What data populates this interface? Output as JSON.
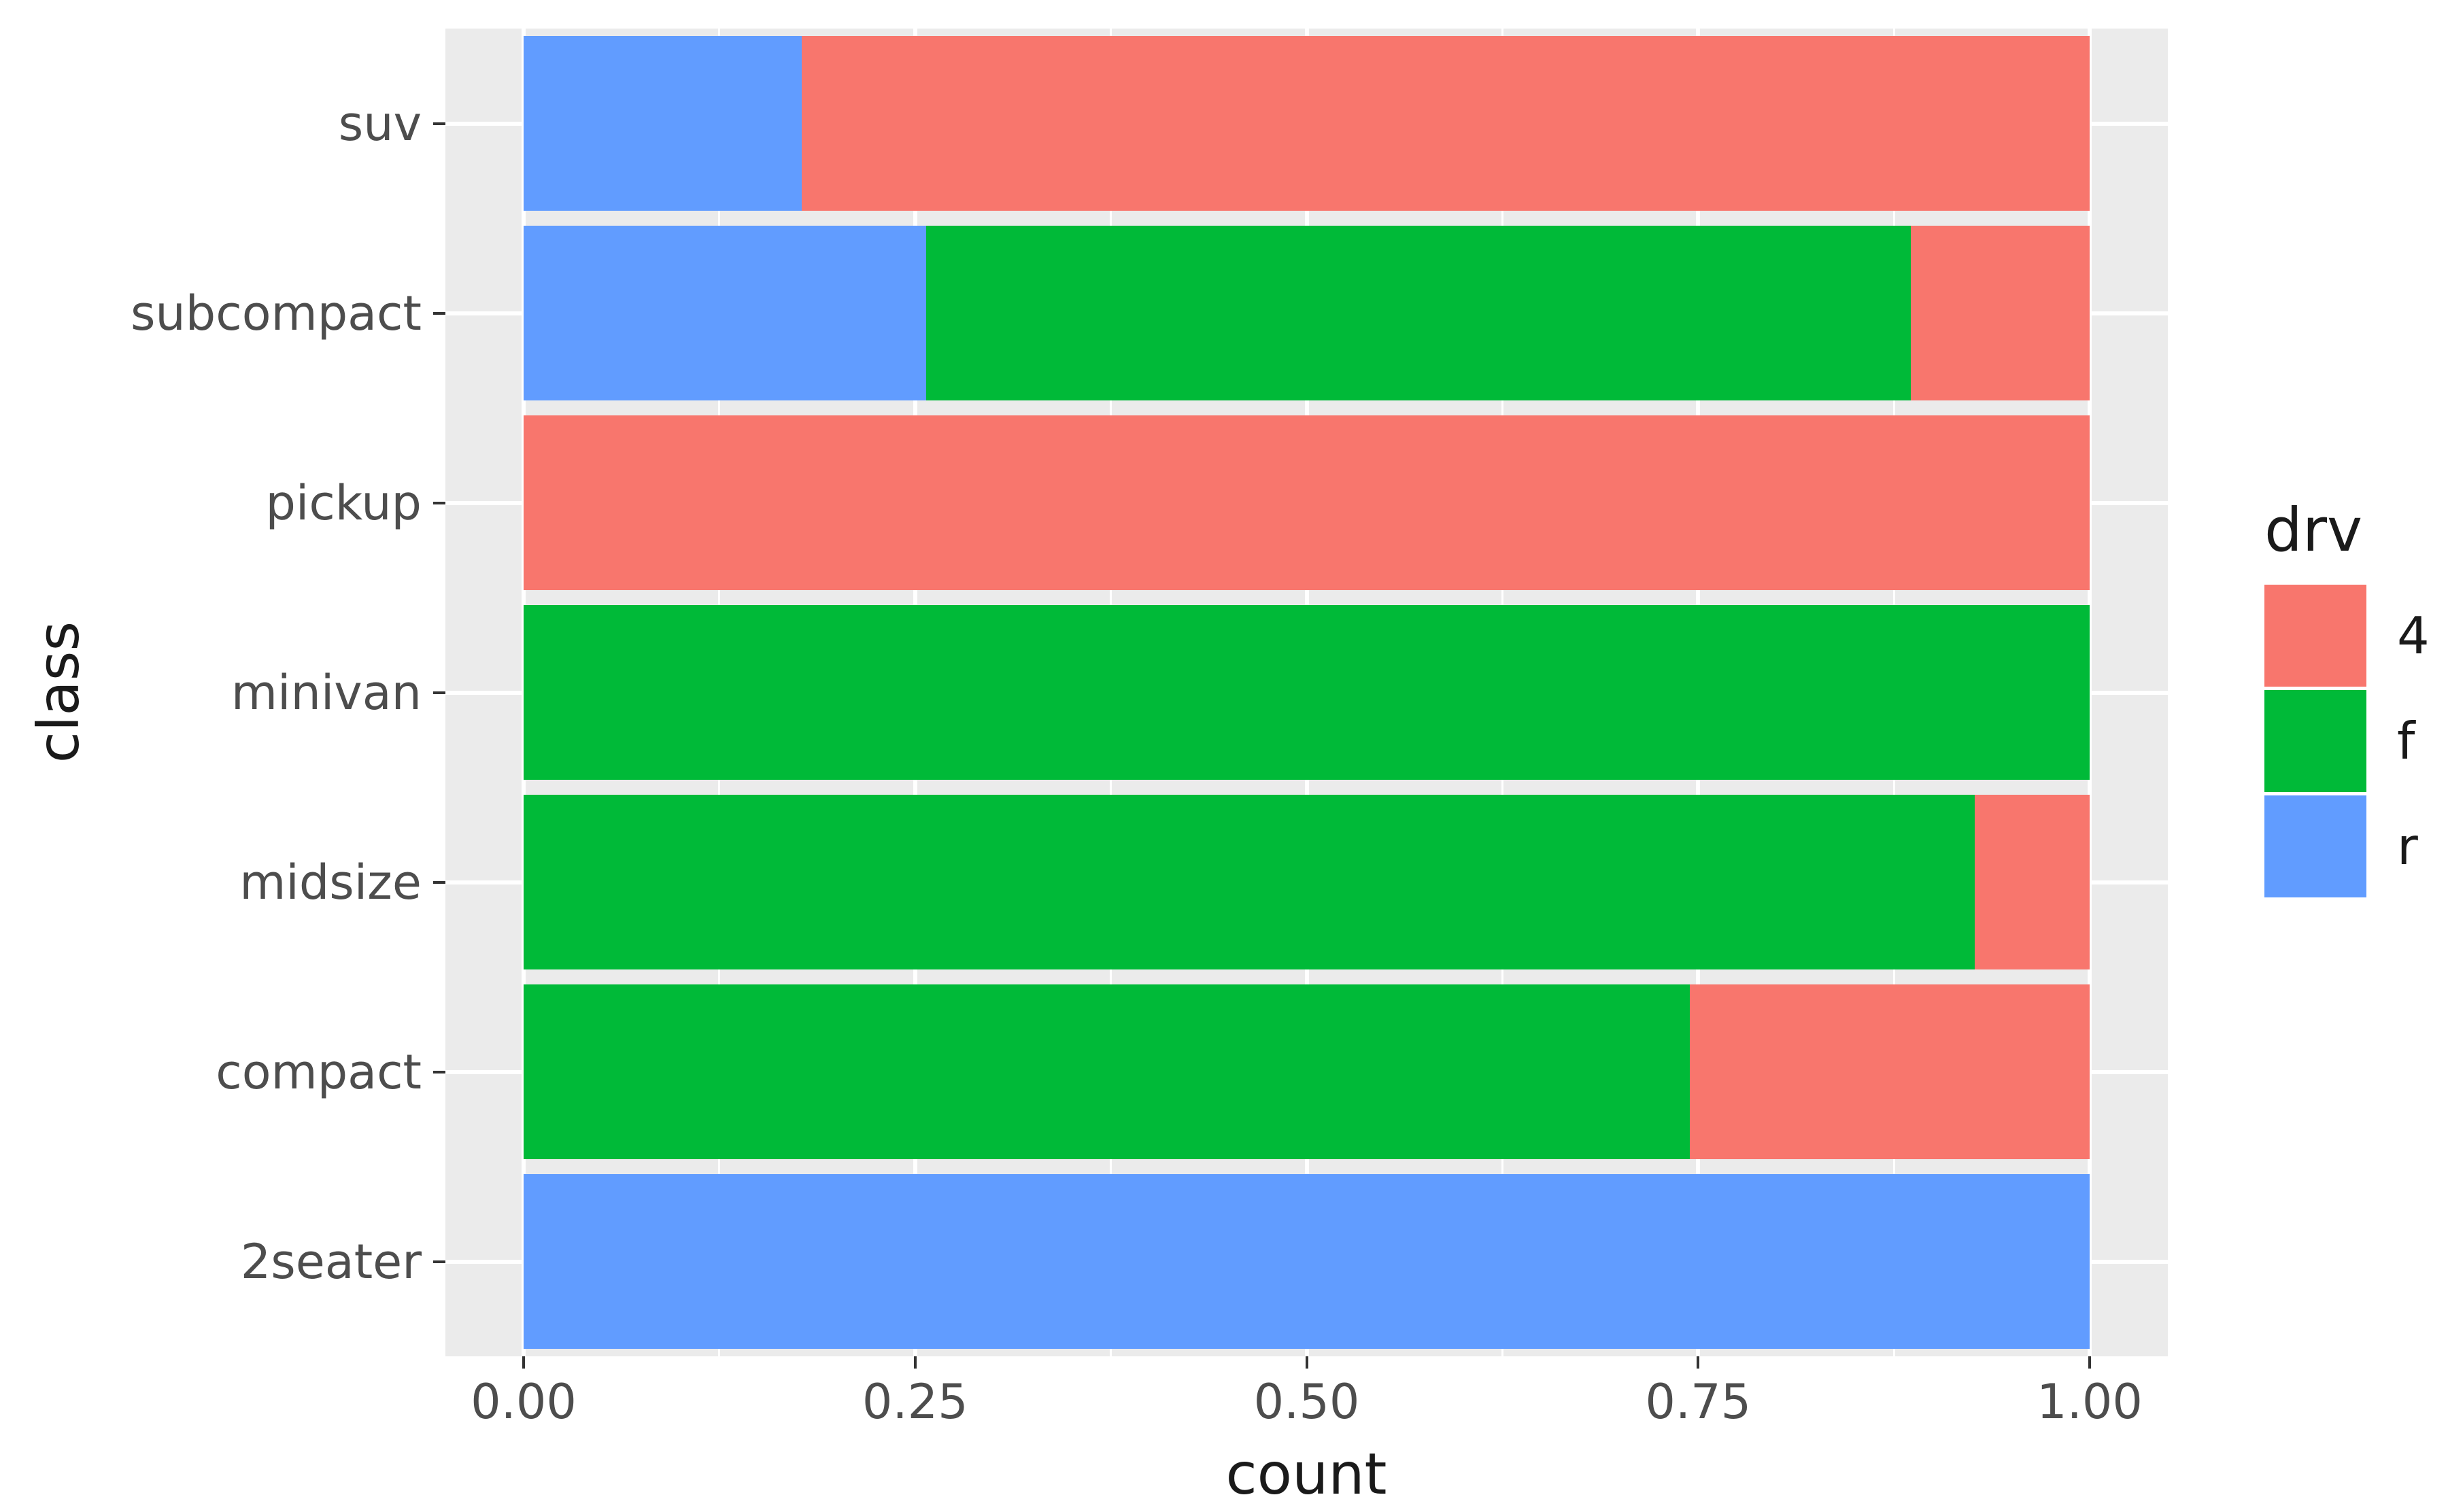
{
  "figure": {
    "background": "#FFFFFF",
    "panel_background": "#EBEBEB",
    "grid_color": "#FFFFFF",
    "tick_color": "#333333",
    "axis_text_color": "#4D4D4D",
    "title_text_color": "#1A1A1A"
  },
  "chart_data": {
    "type": "bar",
    "orientation": "horizontal",
    "stacking": "fill",
    "title": "",
    "xlabel": "count",
    "ylabel": "class",
    "xlim": [
      0,
      1
    ],
    "grid": "on",
    "x_ticks": [
      {
        "value": 0.0,
        "label": "0.00"
      },
      {
        "value": 0.25,
        "label": "0.25"
      },
      {
        "value": 0.5,
        "label": "0.50"
      },
      {
        "value": 0.75,
        "label": "0.75"
      },
      {
        "value": 1.0,
        "label": "1.00"
      }
    ],
    "x_minor_ticks": [
      0.125,
      0.375,
      0.625,
      0.875
    ],
    "categories": [
      "suv",
      "subcompact",
      "pickup",
      "minivan",
      "midsize",
      "compact",
      "2seater"
    ],
    "series_colors": {
      "4": "#F8766D",
      "f": "#00BA38",
      "r": "#619CFF"
    },
    "legend": {
      "title": "drv",
      "position": "right",
      "entries": [
        {
          "label": "4",
          "color": "#F8766D"
        },
        {
          "label": "f",
          "color": "#00BA38"
        },
        {
          "label": "r",
          "color": "#619CFF"
        }
      ]
    },
    "bars": [
      {
        "category": "suv",
        "segments": [
          {
            "drv": "r",
            "value": 0.1774
          },
          {
            "drv": "4",
            "value": 0.8226
          }
        ]
      },
      {
        "category": "subcompact",
        "segments": [
          {
            "drv": "r",
            "value": 0.2571
          },
          {
            "drv": "f",
            "value": 0.6286
          },
          {
            "drv": "4",
            "value": 0.1143
          }
        ]
      },
      {
        "category": "pickup",
        "segments": [
          {
            "drv": "4",
            "value": 1.0
          }
        ]
      },
      {
        "category": "minivan",
        "segments": [
          {
            "drv": "f",
            "value": 1.0
          }
        ]
      },
      {
        "category": "midsize",
        "segments": [
          {
            "drv": "f",
            "value": 0.9268
          },
          {
            "drv": "4",
            "value": 0.0732
          }
        ]
      },
      {
        "category": "compact",
        "segments": [
          {
            "drv": "f",
            "value": 0.7447
          },
          {
            "drv": "4",
            "value": 0.2553
          }
        ]
      },
      {
        "category": "2seater",
        "segments": [
          {
            "drv": "r",
            "value": 1.0
          }
        ]
      }
    ]
  }
}
